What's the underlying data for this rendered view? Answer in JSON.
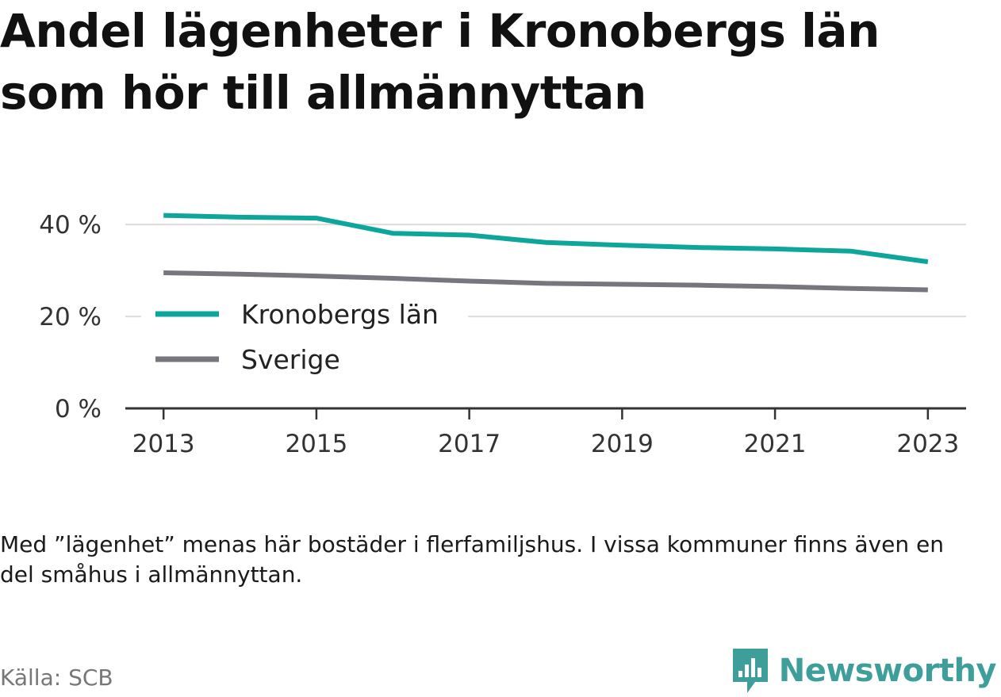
{
  "title": "Andel lägenheter i Kronobergs län som hör till allmännyttan",
  "note": "Med ”lägenhet” menas här bostäder i flerfamiljshus. I vissa kommuner finns även en del småhus i allmännyttan.",
  "source": "Källa: SCB",
  "brand": {
    "name": "Newsworthy",
    "logo_icon": "chart-bubble-icon",
    "color": "#3d9e9a"
  },
  "chart_data": {
    "type": "line",
    "x": [
      2013,
      2014,
      2015,
      2016,
      2017,
      2018,
      2019,
      2020,
      2021,
      2022,
      2023
    ],
    "x_ticks": [
      "2013",
      "2015",
      "2017",
      "2019",
      "2021",
      "2023"
    ],
    "y_ticks": [
      "0 %",
      "20 %",
      "40 %"
    ],
    "y_tick_values": [
      0,
      20,
      40
    ],
    "ylim": [
      0,
      44
    ],
    "xlim": [
      2012.5,
      2023.5
    ],
    "grid": true,
    "legend_placement": "center-left",
    "series": [
      {
        "name": "Kronobergs län",
        "color": "#0ea69b",
        "values": [
          42.0,
          41.6,
          41.4,
          38.1,
          37.7,
          36.1,
          35.5,
          35.0,
          34.7,
          34.2,
          31.9
        ]
      },
      {
        "name": "Sverige",
        "color": "#76767e",
        "values": [
          29.5,
          29.2,
          28.8,
          28.3,
          27.7,
          27.2,
          27.0,
          26.8,
          26.5,
          26.1,
          25.8
        ]
      }
    ]
  }
}
